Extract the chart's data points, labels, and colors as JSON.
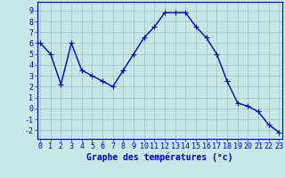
{
  "hours": [
    0,
    1,
    2,
    3,
    4,
    5,
    6,
    7,
    8,
    9,
    10,
    11,
    12,
    13,
    14,
    15,
    16,
    17,
    18,
    19,
    20,
    21,
    22,
    23
  ],
  "temps": [
    6,
    5,
    2.2,
    6,
    3.5,
    3,
    2.5,
    2,
    3.5,
    5,
    6.5,
    7.5,
    8.8,
    8.8,
    8.8,
    7.5,
    6.5,
    5,
    2.5,
    0.5,
    0.2,
    -0.3,
    -1.5,
    -2.2
  ],
  "line_color": "#0000cc",
  "bg_color": "#c8e8e8",
  "grid_color": "#a0c0c0",
  "title": "Graphe des températures (°c)",
  "ylabel_ticks": [
    -2,
    -1,
    0,
    1,
    2,
    3,
    4,
    5,
    6,
    7,
    8,
    9
  ],
  "xlabel_ticks": [
    0,
    1,
    2,
    3,
    4,
    5,
    6,
    7,
    8,
    9,
    10,
    11,
    12,
    13,
    14,
    15,
    16,
    17,
    18,
    19,
    20,
    21,
    22,
    23
  ],
  "ylim": [
    -2.8,
    9.8
  ],
  "xlim": [
    -0.3,
    23.3
  ],
  "marker": "+",
  "marker_size": 4,
  "linewidth": 1.0,
  "tick_fontsize": 6,
  "xlabel_fontsize": 7
}
